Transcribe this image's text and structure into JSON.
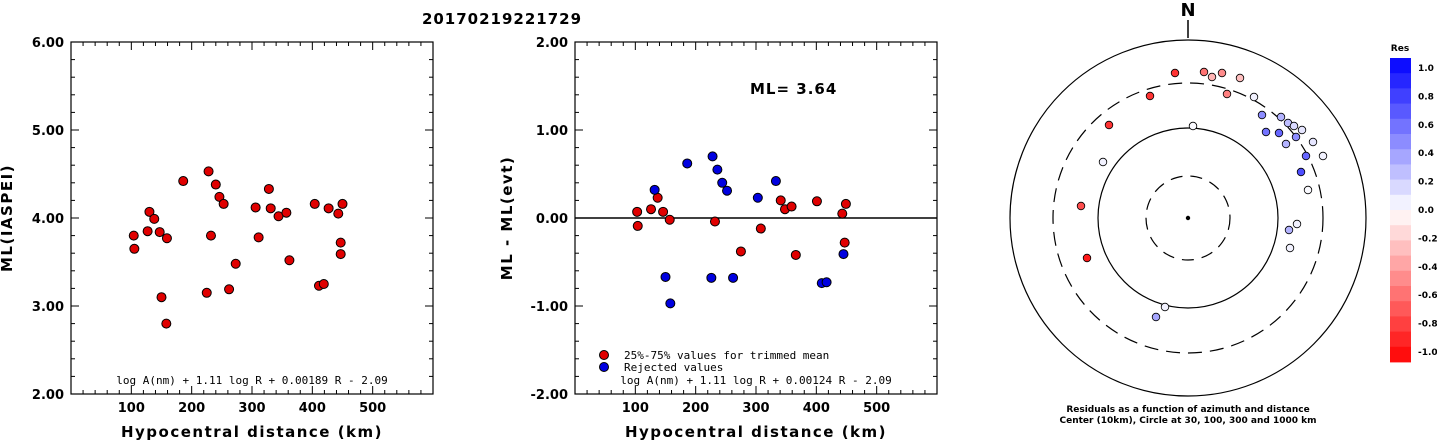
{
  "event_id": "20170219221729",
  "colors": {
    "accepted": "#e00000",
    "rejected": "#0000e0",
    "axis": "#000000"
  },
  "chart_data": [
    {
      "type": "scatter",
      "title": "",
      "xlabel": "Hypocentral distance (km)",
      "ylabel": "ML(IASPEI)",
      "xlim": [
        0,
        600
      ],
      "ylim": [
        2.0,
        6.0
      ],
      "x_ticks": [
        "100",
        "200",
        "300",
        "400",
        "500"
      ],
      "y_ticks": [
        "2.00",
        "3.00",
        "4.00",
        "5.00",
        "6.00"
      ],
      "formula": "log A(nm) + 1.11 log R + 0.00189 R - 2.09",
      "series": [
        {
          "color": "accepted",
          "points": [
            [
              104,
              3.8
            ],
            [
              105,
              3.65
            ],
            [
              127,
              3.85
            ],
            [
              130,
              4.07
            ],
            [
              138,
              3.99
            ],
            [
              147,
              3.84
            ],
            [
              150,
              3.1
            ],
            [
              158,
              2.8
            ],
            [
              159,
              3.77
            ],
            [
              186,
              4.42
            ],
            [
              225,
              3.15
            ],
            [
              228,
              4.53
            ],
            [
              232,
              3.8
            ],
            [
              240,
              4.38
            ],
            [
              246,
              4.24
            ],
            [
              253,
              4.16
            ],
            [
              262,
              3.19
            ],
            [
              273,
              3.48
            ],
            [
              306,
              4.12
            ],
            [
              311,
              3.78
            ],
            [
              328,
              4.33
            ],
            [
              331,
              4.11
            ],
            [
              344,
              4.02
            ],
            [
              357,
              4.06
            ],
            [
              362,
              3.52
            ],
            [
              404,
              4.16
            ],
            [
              411,
              3.23
            ],
            [
              419,
              3.25
            ],
            [
              427,
              4.11
            ],
            [
              443,
              4.05
            ],
            [
              447,
              3.72
            ],
            [
              447,
              3.59
            ],
            [
              450,
              4.16
            ]
          ]
        }
      ]
    },
    {
      "type": "scatter",
      "title": "",
      "xlabel": "Hypocentral distance (km)",
      "ylabel": "ML - ML(evt)",
      "xlim": [
        0,
        600
      ],
      "ylim": [
        -2.0,
        2.0
      ],
      "x_ticks": [
        "100",
        "200",
        "300",
        "400",
        "500"
      ],
      "y_ticks": [
        "-2.00",
        "-1.00",
        "0.00",
        "1.00",
        "2.00"
      ],
      "ml_label": "ML=  3.64",
      "legend": [
        {
          "color": "accepted",
          "label": "25%-75% values for trimmed mean"
        },
        {
          "color": "rejected",
          "label": "Rejected values"
        }
      ],
      "formula": "log A(nm) + 1.11 log R + 0.00124 R - 2.09",
      "series": [
        {
          "color": "accepted",
          "points": [
            [
              103,
              0.07
            ],
            [
              104,
              -0.09
            ],
            [
              126,
              0.1
            ],
            [
              137,
              0.23
            ],
            [
              146,
              0.07
            ],
            [
              157,
              -0.02
            ],
            [
              232,
              -0.04
            ],
            [
              275,
              -0.38
            ],
            [
              308,
              -0.12
            ],
            [
              341,
              0.2
            ],
            [
              348,
              0.1
            ],
            [
              359,
              0.13
            ],
            [
              366,
              -0.42
            ],
            [
              401,
              0.19
            ],
            [
              443,
              0.05
            ],
            [
              447,
              -0.28
            ],
            [
              449,
              0.16
            ]
          ]
        },
        {
          "color": "rejected",
          "points": [
            [
              132,
              0.32
            ],
            [
              150,
              -0.67
            ],
            [
              158,
              -0.97
            ],
            [
              186,
              0.62
            ],
            [
              226,
              -0.68
            ],
            [
              228,
              0.7
            ],
            [
              236,
              0.55
            ],
            [
              244,
              0.4
            ],
            [
              252,
              0.31
            ],
            [
              262,
              -0.68
            ],
            [
              303,
              0.23
            ],
            [
              333,
              0.42
            ],
            [
              409,
              -0.74
            ],
            [
              417,
              -0.73
            ],
            [
              445,
              -0.41
            ]
          ]
        }
      ]
    }
  ],
  "azimuth_plot": {
    "north_label": "N",
    "caption_line1": "Residuals as a function of azimuth and distance",
    "caption_line2": "Center (10km), Circle at 30, 100, 300 and 1000 km",
    "colorbar_title": "Res",
    "colorbar_ticks": [
      "1.0",
      "0.8",
      "0.6",
      "0.4",
      "0.2",
      "0.0",
      "-0.2",
      "-0.4",
      "-0.6",
      "-0.8",
      "-1.0"
    ]
  }
}
